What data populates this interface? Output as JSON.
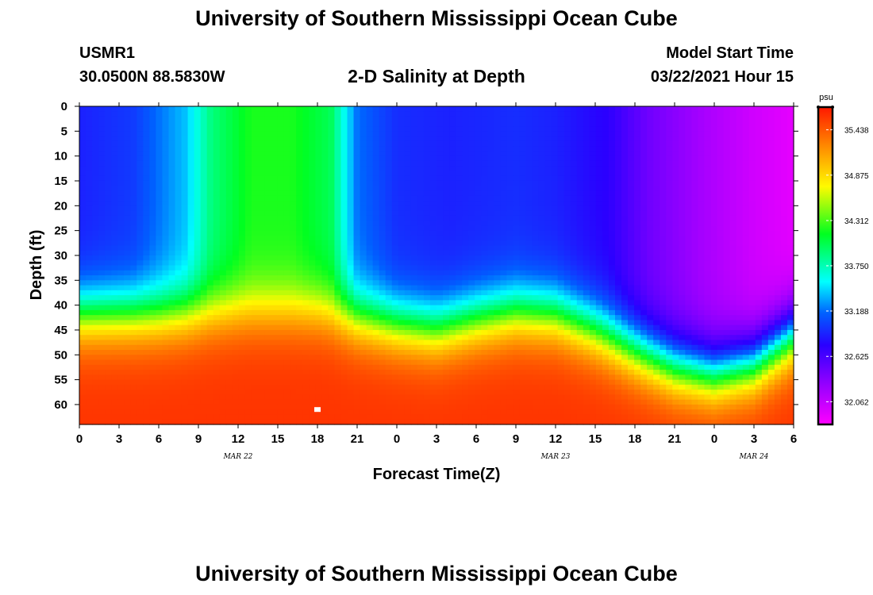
{
  "header": {
    "title": "University of Southern Mississippi Ocean Cube",
    "station_id": "USMR1",
    "location": "30.0500N 88.5830W",
    "chart_title": "2-D Salinity at Depth",
    "model_label": "Model Start Time",
    "model_value": "03/22/2021 Hour 15"
  },
  "footer": {
    "title": "University of Southern Mississippi Ocean Cube"
  },
  "colors": {
    "background": "#ffffff",
    "axis": "#000000",
    "marker": "#ffffff"
  },
  "chart_data": {
    "type": "heatmap",
    "title": "2-D Salinity at Depth",
    "xlabel": "Forecast Time(Z)",
    "ylabel": "Depth (ft)",
    "x_range_hours": [
      0,
      54
    ],
    "ylim": [
      0,
      64
    ],
    "y_inverted": true,
    "x_tick_labels": [
      "0",
      "3",
      "6",
      "9",
      "12",
      "15",
      "18",
      "21",
      "0",
      "3",
      "6",
      "9",
      "12",
      "15",
      "18",
      "21",
      "0",
      "3",
      "6"
    ],
    "y_tick_labels": [
      "0",
      "5",
      "10",
      "15",
      "20",
      "25",
      "30",
      "35",
      "40",
      "45",
      "50",
      "55",
      "60"
    ],
    "date_labels": [
      {
        "label": "MAR 22",
        "hour": 12
      },
      {
        "label": "MAR 23",
        "hour": 36
      },
      {
        "label": "MAR 24",
        "hour": 51
      }
    ],
    "colorbar": {
      "unit": "psu",
      "min": 31.78,
      "max": 35.72,
      "tick_values": [
        "35.438",
        "34.875",
        "34.312",
        "33.750",
        "33.188",
        "32.625",
        "32.062"
      ]
    },
    "surface_salinity": [
      {
        "hour": 0,
        "value": 32.9
      },
      {
        "hour": 4,
        "value": 33.0
      },
      {
        "hour": 8,
        "value": 33.4
      },
      {
        "hour": 10,
        "value": 33.9
      },
      {
        "hour": 13,
        "value": 34.2
      },
      {
        "hour": 16,
        "value": 34.2
      },
      {
        "hour": 19,
        "value": 34.0
      },
      {
        "hour": 21,
        "value": 33.2
      },
      {
        "hour": 24,
        "value": 32.95
      },
      {
        "hour": 28,
        "value": 32.9
      },
      {
        "hour": 33,
        "value": 32.95
      },
      {
        "hour": 36,
        "value": 32.9
      },
      {
        "hour": 40,
        "value": 32.75
      },
      {
        "hour": 43,
        "value": 32.45
      },
      {
        "hour": 47,
        "value": 32.2
      },
      {
        "hour": 51,
        "value": 32.0
      },
      {
        "hour": 54,
        "value": 31.9
      }
    ],
    "deep_salinity_ppt": 35.6,
    "halocline_depth_ft": [
      {
        "hour": 0,
        "value": 42
      },
      {
        "hour": 6,
        "value": 42
      },
      {
        "hour": 12,
        "value": 41
      },
      {
        "hour": 18,
        "value": 41
      },
      {
        "hour": 20,
        "value": 42
      },
      {
        "hour": 24,
        "value": 44
      },
      {
        "hour": 27,
        "value": 45
      },
      {
        "hour": 30,
        "value": 43
      },
      {
        "hour": 33,
        "value": 41.5
      },
      {
        "hour": 36,
        "value": 42
      },
      {
        "hour": 39,
        "value": 45
      },
      {
        "hour": 42,
        "value": 49
      },
      {
        "hour": 45,
        "value": 52.5
      },
      {
        "hour": 48,
        "value": 54
      },
      {
        "hour": 51,
        "value": 52
      },
      {
        "hour": 54,
        "value": 46
      }
    ],
    "marker": {
      "hour": 18,
      "depth_ft": 61
    }
  }
}
